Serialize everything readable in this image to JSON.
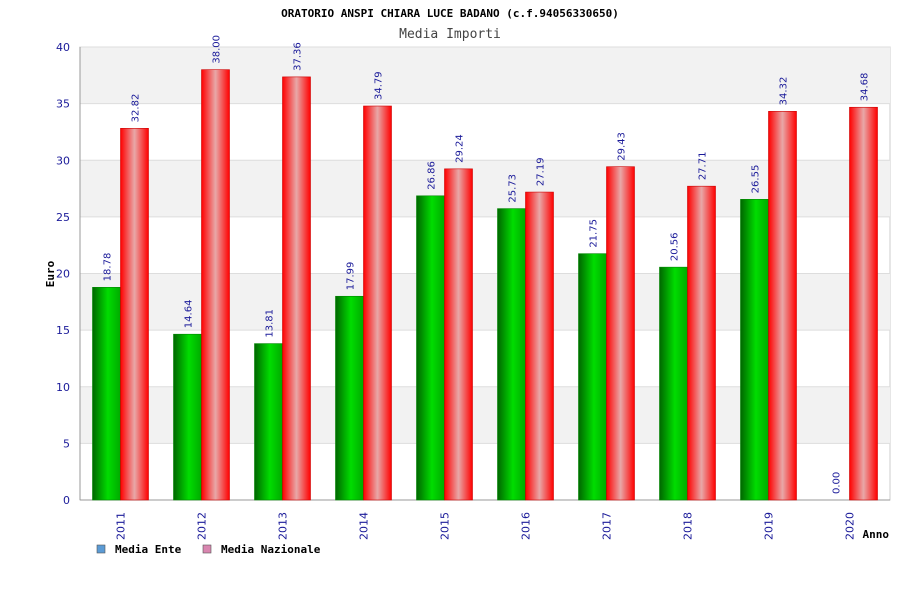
{
  "chart_data": {
    "type": "bar",
    "title": "ORATORIO ANSPI CHIARA LUCE BADANO (c.f.94056330650)",
    "subtitle": "Media Importi",
    "xlabel": "Anno",
    "ylabel": "Euro",
    "ylim": [
      0,
      40
    ],
    "yticks": [
      0,
      5,
      10,
      15,
      20,
      25,
      30,
      35,
      40
    ],
    "categories": [
      "2011",
      "2012",
      "2013",
      "2014",
      "2015",
      "2016",
      "2017",
      "2018",
      "2019",
      "2020"
    ],
    "series": [
      {
        "name": "Media Ente",
        "color": "#00cc00",
        "legend_color": "#5b9bd5",
        "values": [
          18.78,
          14.64,
          13.81,
          17.99,
          26.86,
          25.73,
          21.75,
          20.56,
          26.55,
          0.0
        ],
        "labels": [
          "18.78",
          "14.64",
          "13.81",
          "17.99",
          "26.86",
          "25.73",
          "21.75",
          "20.56",
          "26.55",
          "0.00"
        ]
      },
      {
        "name": "Media Nazionale",
        "color": "#ff0000",
        "legend_color": "#d986b0",
        "values": [
          32.82,
          38.0,
          37.36,
          34.79,
          29.24,
          27.19,
          29.43,
          27.71,
          34.32,
          34.68
        ],
        "labels": [
          "32.82",
          "38.00",
          "37.36",
          "34.79",
          "29.24",
          "27.19",
          "29.43",
          "27.71",
          "34.32",
          "34.68"
        ]
      }
    ],
    "grid": true,
    "legend_position": "bottom-left"
  }
}
